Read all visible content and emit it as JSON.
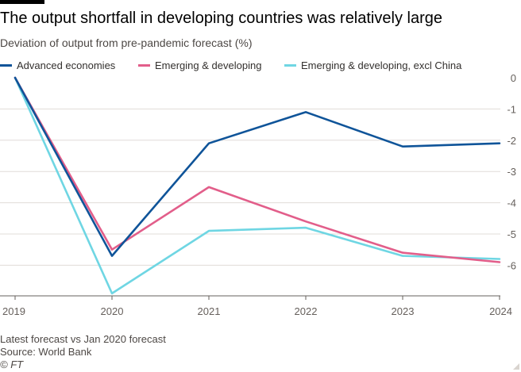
{
  "header": {
    "title": "The output shortfall in developing countries was relatively large",
    "subtitle": "Deviation of output from pre-pandemic forecast (%)"
  },
  "footer": {
    "note": "Latest forecast vs Jan 2020 forecast",
    "source": "Source: World Bank",
    "credit": "© FT"
  },
  "colors": {
    "advanced": "#0f5499",
    "emerging": "#e25e8a",
    "emerging_excl_china": "#6fd6e3",
    "grid": "#e0dcd8",
    "axis": "#66605c"
  },
  "chart_data": {
    "type": "line",
    "title": "The output shortfall in developing countries was relatively large",
    "subtitle": "Deviation of output from pre-pandemic forecast (%)",
    "x": [
      "2019",
      "2020",
      "2021",
      "2022",
      "2023",
      "2024"
    ],
    "series": [
      {
        "name": "Advanced economies",
        "color": "#0f5499",
        "values": [
          0,
          -5.7,
          -2.1,
          -1.1,
          -2.2,
          -2.1
        ]
      },
      {
        "name": "Emerging & developing",
        "color": "#e25e8a",
        "values": [
          0,
          -5.5,
          -3.5,
          -4.6,
          -5.6,
          -5.9
        ]
      },
      {
        "name": "Emerging & developing, excl China",
        "color": "#6fd6e3",
        "values": [
          0,
          -6.9,
          -4.9,
          -4.8,
          -5.7,
          -5.8
        ]
      }
    ],
    "yticks": [
      0,
      -1,
      -2,
      -3,
      -4,
      -5,
      -6
    ],
    "ylim": [
      -7,
      0
    ],
    "y_axis_position": "right",
    "grid": true,
    "legend_placement": "top"
  }
}
